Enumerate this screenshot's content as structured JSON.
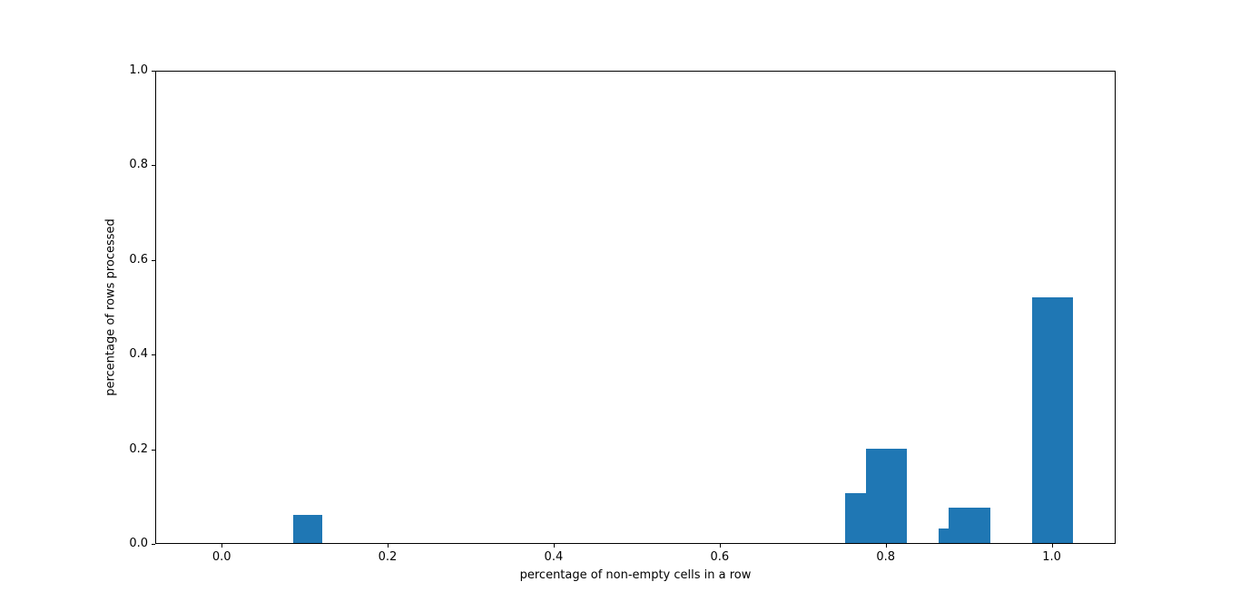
{
  "chart_data": {
    "type": "bar",
    "title": "",
    "xlabel": "percentage of non-empty cells in a row",
    "ylabel": "percentage of rows processed",
    "xlim": [
      -0.08,
      1.077
    ],
    "ylim": [
      0.0,
      1.0
    ],
    "x_ticks": [
      0.0,
      0.2,
      0.4,
      0.6,
      0.8,
      1.0
    ],
    "y_ticks": [
      0.0,
      0.2,
      0.4,
      0.6,
      0.8,
      1.0
    ],
    "grid": false,
    "legend": null,
    "bar_color": "#1f77b4",
    "bars": [
      {
        "x_start": 0.085,
        "x_end": 0.12,
        "height": 0.06
      },
      {
        "x_start": 0.75,
        "x_end": 0.775,
        "height": 0.105
      },
      {
        "x_start": 0.775,
        "x_end": 0.825,
        "height": 0.2
      },
      {
        "x_start": 0.863,
        "x_end": 0.875,
        "height": 0.03
      },
      {
        "x_start": 0.875,
        "x_end": 0.925,
        "height": 0.075
      },
      {
        "x_start": 0.975,
        "x_end": 1.025,
        "height": 0.52
      }
    ]
  },
  "figure": {
    "background_color": "#ffffff"
  }
}
